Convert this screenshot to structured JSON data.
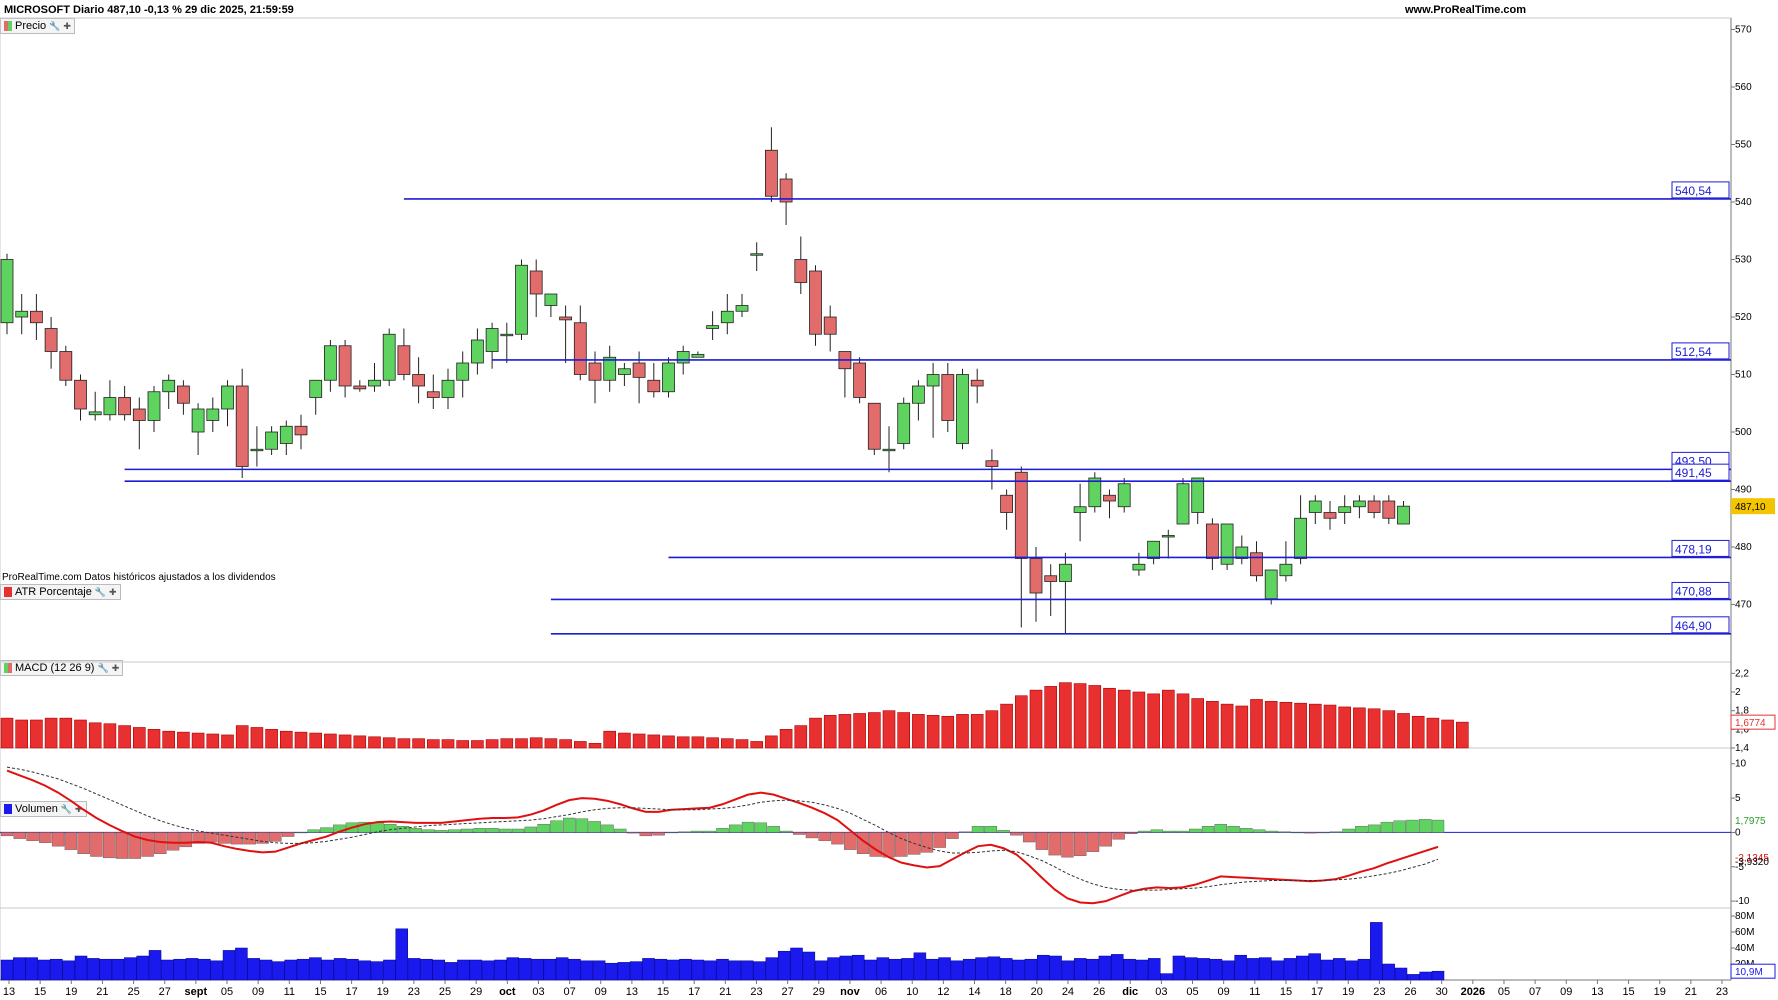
{
  "header": {
    "title": "MICROSOFT Diario 487,10 -0,13 % 29 dic 2025, 21:59:59",
    "site": "www.ProRealTime.com",
    "note": "ProRealTime.com Datos históricos ajustados a los dividendos"
  },
  "panels": {
    "price": {
      "label": "Precio"
    },
    "atr": {
      "label": "ATR Porcentaje",
      "current_label": "1,6774"
    },
    "macd": {
      "label": "MACD (12 26 9)",
      "hist_label": "1,7975",
      "macd_label": "-2,1345",
      "signal_label": "-3,9320"
    },
    "volume": {
      "label": "Volumen",
      "current_label": "10,9M"
    }
  },
  "colors": {
    "up": "#5fd35f",
    "down": "#e26b6b",
    "level": "#1c1cd6",
    "atr": "#e83030",
    "macd_line": "#e01010",
    "volume": "#1a1aee",
    "price_tag": "#f4c400"
  },
  "chart_data": [
    {
      "type": "candlestick",
      "series_name": "Precio",
      "ylim": [
        460,
        572
      ],
      "y_ticks": [
        470,
        480,
        490,
        500,
        510,
        520,
        530,
        540,
        550,
        560,
        570
      ],
      "last_price_label": "487,10",
      "levels": [
        {
          "label": "540,54",
          "value": 540.54,
          "from_index": 27
        },
        {
          "label": "512,54",
          "value": 512.54,
          "from_index": 33
        },
        {
          "label": "493,50",
          "value": 493.5,
          "from_index": 8
        },
        {
          "label": "491,45",
          "value": 491.45,
          "from_index": 8
        },
        {
          "label": "478,19",
          "value": 478.19,
          "from_index": 45
        },
        {
          "label": "470,88",
          "value": 470.88,
          "from_index": 37
        },
        {
          "label": "464,90",
          "value": 464.9,
          "from_index": 37
        }
      ],
      "candles": [
        {
          "o": 519,
          "h": 531,
          "l": 517,
          "c": 530
        },
        {
          "o": 520,
          "h": 524,
          "l": 517,
          "c": 521
        },
        {
          "o": 521,
          "h": 524,
          "l": 516,
          "c": 519
        },
        {
          "o": 518,
          "h": 520,
          "l": 511,
          "c": 514
        },
        {
          "o": 514,
          "h": 515,
          "l": 508,
          "c": 509
        },
        {
          "o": 509,
          "h": 510,
          "l": 502,
          "c": 504
        },
        {
          "o": 503,
          "h": 507,
          "l": 502,
          "c": 503.5
        },
        {
          "o": 503,
          "h": 509,
          "l": 502,
          "c": 506
        },
        {
          "o": 506,
          "h": 508,
          "l": 502,
          "c": 503
        },
        {
          "o": 504,
          "h": 506,
          "l": 497,
          "c": 502
        },
        {
          "o": 502,
          "h": 508,
          "l": 500,
          "c": 507
        },
        {
          "o": 507,
          "h": 510,
          "l": 504,
          "c": 509
        },
        {
          "o": 508,
          "h": 509,
          "l": 503,
          "c": 505
        },
        {
          "o": 500,
          "h": 505,
          "l": 496,
          "c": 504
        },
        {
          "o": 502,
          "h": 506,
          "l": 500,
          "c": 504
        },
        {
          "o": 504,
          "h": 509,
          "l": 501,
          "c": 508
        },
        {
          "o": 508,
          "h": 511,
          "l": 492,
          "c": 494
        },
        {
          "o": 497,
          "h": 501,
          "l": 494,
          "c": 497
        },
        {
          "o": 497,
          "h": 501,
          "l": 496,
          "c": 500
        },
        {
          "o": 498,
          "h": 502,
          "l": 496,
          "c": 501
        },
        {
          "o": 501,
          "h": 503,
          "l": 497,
          "c": 499.5
        },
        {
          "o": 506,
          "h": 509,
          "l": 503,
          "c": 509
        },
        {
          "o": 509,
          "h": 516,
          "l": 507,
          "c": 515
        },
        {
          "o": 515,
          "h": 516,
          "l": 506,
          "c": 508
        },
        {
          "o": 508,
          "h": 509,
          "l": 507,
          "c": 507.5
        },
        {
          "o": 508,
          "h": 512,
          "l": 507,
          "c": 509
        },
        {
          "o": 509,
          "h": 518,
          "l": 508,
          "c": 517
        },
        {
          "o": 515,
          "h": 518,
          "l": 509,
          "c": 510
        },
        {
          "o": 510,
          "h": 513,
          "l": 505,
          "c": 508
        },
        {
          "o": 507,
          "h": 510,
          "l": 504,
          "c": 506
        },
        {
          "o": 506,
          "h": 511,
          "l": 504,
          "c": 509
        },
        {
          "o": 509,
          "h": 514,
          "l": 506,
          "c": 512
        },
        {
          "o": 512,
          "h": 518,
          "l": 510,
          "c": 516
        },
        {
          "o": 514,
          "h": 519,
          "l": 511,
          "c": 518
        },
        {
          "o": 517,
          "h": 519,
          "l": 512,
          "c": 517
        },
        {
          "o": 517,
          "h": 530,
          "l": 516,
          "c": 529
        },
        {
          "o": 528,
          "h": 530,
          "l": 520,
          "c": 524
        },
        {
          "o": 522,
          "h": 524,
          "l": 520,
          "c": 524
        },
        {
          "o": 520,
          "h": 522,
          "l": 512,
          "c": 519.5
        },
        {
          "o": 519,
          "h": 522,
          "l": 509,
          "c": 510
        },
        {
          "o": 512,
          "h": 514,
          "l": 505,
          "c": 509
        },
        {
          "o": 509,
          "h": 515,
          "l": 507,
          "c": 513
        },
        {
          "o": 510,
          "h": 512,
          "l": 508,
          "c": 511
        },
        {
          "o": 512,
          "h": 514,
          "l": 505,
          "c": 509.5
        },
        {
          "o": 509,
          "h": 512,
          "l": 506,
          "c": 507
        },
        {
          "o": 507,
          "h": 513,
          "l": 506,
          "c": 512
        },
        {
          "o": 512,
          "h": 515,
          "l": 510,
          "c": 514
        },
        {
          "o": 513,
          "h": 514,
          "l": 513,
          "c": 513.5
        },
        {
          "o": 518,
          "h": 521,
          "l": 516,
          "c": 518.5
        },
        {
          "o": 519,
          "h": 524,
          "l": 517,
          "c": 521
        },
        {
          "o": 521,
          "h": 524,
          "l": 520,
          "c": 522
        },
        {
          "o": 531,
          "h": 533,
          "l": 528,
          "c": 531
        },
        {
          "o": 549,
          "h": 553,
          "l": 540,
          "c": 541
        },
        {
          "o": 544,
          "h": 545,
          "l": 536,
          "c": 540
        },
        {
          "o": 530,
          "h": 534,
          "l": 524,
          "c": 526
        },
        {
          "o": 528,
          "h": 529,
          "l": 515,
          "c": 517
        },
        {
          "o": 520,
          "h": 522,
          "l": 514,
          "c": 517
        },
        {
          "o": 514,
          "h": 514,
          "l": 506,
          "c": 511
        },
        {
          "o": 512,
          "h": 513,
          "l": 505,
          "c": 506
        },
        {
          "o": 505,
          "h": 505,
          "l": 496,
          "c": 497
        },
        {
          "o": 497,
          "h": 501,
          "l": 493,
          "c": 497
        },
        {
          "o": 498,
          "h": 506,
          "l": 497,
          "c": 505
        },
        {
          "o": 505,
          "h": 509,
          "l": 502,
          "c": 508
        },
        {
          "o": 508,
          "h": 512,
          "l": 499,
          "c": 510
        },
        {
          "o": 510,
          "h": 512,
          "l": 500,
          "c": 502
        },
        {
          "o": 498,
          "h": 511,
          "l": 497,
          "c": 510
        },
        {
          "o": 509,
          "h": 511,
          "l": 505,
          "c": 508
        },
        {
          "o": 495,
          "h": 497,
          "l": 490,
          "c": 494
        },
        {
          "o": 489,
          "h": 490,
          "l": 483,
          "c": 486
        },
        {
          "o": 493,
          "h": 494,
          "l": 466,
          "c": 478
        },
        {
          "o": 478,
          "h": 480,
          "l": 467,
          "c": 472
        },
        {
          "o": 475,
          "h": 477,
          "l": 468,
          "c": 474
        },
        {
          "o": 474,
          "h": 479,
          "l": 465,
          "c": 477
        },
        {
          "o": 486,
          "h": 491,
          "l": 481,
          "c": 487
        },
        {
          "o": 487,
          "h": 493,
          "l": 486,
          "c": 492
        },
        {
          "o": 489,
          "h": 490,
          "l": 485,
          "c": 488
        },
        {
          "o": 487,
          "h": 492,
          "l": 486,
          "c": 491
        },
        {
          "o": 476,
          "h": 479,
          "l": 475,
          "c": 477
        },
        {
          "o": 478,
          "h": 481,
          "l": 477,
          "c": 481
        },
        {
          "o": 482,
          "h": 483,
          "l": 478,
          "c": 482
        },
        {
          "o": 484,
          "h": 492,
          "l": 484,
          "c": 491
        },
        {
          "o": 486,
          "h": 492,
          "l": 484,
          "c": 492
        },
        {
          "o": 484,
          "h": 485,
          "l": 476,
          "c": 478
        },
        {
          "o": 477,
          "h": 484,
          "l": 476,
          "c": 484
        },
        {
          "o": 478,
          "h": 482,
          "l": 477,
          "c": 480
        },
        {
          "o": 479,
          "h": 481,
          "l": 474,
          "c": 475
        },
        {
          "o": 471,
          "h": 476,
          "l": 470,
          "c": 476
        },
        {
          "o": 475,
          "h": 481,
          "l": 474,
          "c": 477
        },
        {
          "o": 478,
          "h": 489,
          "l": 477,
          "c": 485
        },
        {
          "o": 486,
          "h": 489,
          "l": 484,
          "c": 488
        },
        {
          "o": 486,
          "h": 488,
          "l": 483,
          "c": 485
        },
        {
          "o": 486,
          "h": 489,
          "l": 484,
          "c": 487
        },
        {
          "o": 487,
          "h": 489,
          "l": 485,
          "c": 488
        },
        {
          "o": 488,
          "h": 489,
          "l": 485,
          "c": 486
        },
        {
          "o": 488,
          "h": 489,
          "l": 484,
          "c": 485
        },
        {
          "o": 484,
          "h": 488,
          "l": 484,
          "c": 487.1
        }
      ]
    },
    {
      "type": "bar",
      "series_name": "ATR Porcentaje",
      "ylim": [
        1.4,
        2.3
      ],
      "y_ticks": [
        1.4,
        1.6,
        1.8,
        2,
        2.2
      ],
      "values": [
        1.72,
        1.7,
        1.7,
        1.72,
        1.72,
        1.7,
        1.67,
        1.66,
        1.64,
        1.62,
        1.6,
        1.58,
        1.57,
        1.56,
        1.55,
        1.54,
        1.64,
        1.62,
        1.6,
        1.58,
        1.57,
        1.56,
        1.55,
        1.54,
        1.53,
        1.52,
        1.51,
        1.5,
        1.5,
        1.49,
        1.49,
        1.48,
        1.48,
        1.49,
        1.5,
        1.5,
        1.51,
        1.5,
        1.49,
        1.47,
        1.45,
        1.58,
        1.56,
        1.55,
        1.54,
        1.53,
        1.52,
        1.52,
        1.51,
        1.5,
        1.49,
        1.47,
        1.53,
        1.6,
        1.64,
        1.72,
        1.75,
        1.76,
        1.77,
        1.78,
        1.8,
        1.78,
        1.76,
        1.75,
        1.74,
        1.76,
        1.76,
        1.8,
        1.87,
        1.96,
        2.02,
        2.06,
        2.1,
        2.09,
        2.07,
        2.04,
        2.02,
        2.0,
        1.98,
        2.02,
        1.98,
        1.93,
        1.9,
        1.87,
        1.85,
        1.92,
        1.9,
        1.89,
        1.88,
        1.87,
        1.86,
        1.84,
        1.83,
        1.82,
        1.8,
        1.77,
        1.74,
        1.72,
        1.7,
        1.677
      ],
      "value_label": "1,6774"
    },
    {
      "type": "macd",
      "series_name": "MACD (12 26 9)",
      "ylim": [
        -11,
        12
      ],
      "y_ticks": [
        -10,
        -5,
        0,
        5,
        10
      ],
      "macd": [
        9.0,
        8.3,
        7.6,
        6.8,
        5.8,
        4.6,
        3.3,
        2.1,
        1.1,
        0.2,
        -0.6,
        -1.1,
        -1.4,
        -1.5,
        -1.5,
        -1.4,
        -1.5,
        -2.0,
        -2.4,
        -2.7,
        -2.9,
        -2.8,
        -2.2,
        -1.6,
        -1.1,
        -0.6,
        0.1,
        0.7,
        1.2,
        1.5,
        1.6,
        1.5,
        1.4,
        1.4,
        1.4,
        1.6,
        1.8,
        2.0,
        2.1,
        2.1,
        2.2,
        2.6,
        3.2,
        4.0,
        4.7,
        5.0,
        4.9,
        4.6,
        4.1,
        3.5,
        3.0,
        3.0,
        3.3,
        3.4,
        3.5,
        3.6,
        4.1,
        4.8,
        5.5,
        5.8,
        5.5,
        4.9,
        4.3,
        3.6,
        2.8,
        1.8,
        0.3,
        -1.2,
        -2.5,
        -3.6,
        -4.4,
        -4.8,
        -5.1,
        -4.9,
        -3.9,
        -2.9,
        -2.0,
        -1.8,
        -2.3,
        -3.2,
        -4.8,
        -6.6,
        -8.3,
        -9.6,
        -10.2,
        -10.3,
        -10.0,
        -9.3,
        -8.6,
        -8.2,
        -8.0,
        -8.1,
        -8.0,
        -7.6,
        -7.0,
        -6.4,
        -6.5,
        -6.6,
        -6.7,
        -6.8,
        -6.9,
        -7.0,
        -7.1,
        -7.0,
        -6.8,
        -6.3,
        -5.7,
        -5.2,
        -4.5,
        -3.9,
        -3.3,
        -2.7,
        -2.1
      ],
      "signal": [
        9.5,
        9.2,
        8.8,
        8.3,
        7.8,
        7.1,
        6.4,
        5.6,
        4.8,
        4.0,
        3.2,
        2.4,
        1.7,
        1.1,
        0.6,
        0.2,
        -0.1,
        -0.4,
        -0.7,
        -1.0,
        -1.3,
        -1.5,
        -1.6,
        -1.6,
        -1.5,
        -1.3,
        -1.0,
        -0.7,
        -0.3,
        0.1,
        0.4,
        0.6,
        0.8,
        1.0,
        1.1,
        1.2,
        1.3,
        1.4,
        1.5,
        1.6,
        1.7,
        1.8,
        2.0,
        2.3,
        2.6,
        3.0,
        3.3,
        3.5,
        3.6,
        3.6,
        3.5,
        3.4,
        3.3,
        3.3,
        3.3,
        3.4,
        3.5,
        3.7,
        4.0,
        4.4,
        4.6,
        4.7,
        4.6,
        4.4,
        4.0,
        3.5,
        2.8,
        1.9,
        1.0,
        0.0,
        -0.9,
        -1.6,
        -2.2,
        -2.7,
        -3.0,
        -3.0,
        -2.9,
        -2.7,
        -2.6,
        -2.8,
        -3.4,
        -4.1,
        -5.0,
        -6.0,
        -6.8,
        -7.5,
        -8.0,
        -8.3,
        -8.4,
        -8.4,
        -8.4,
        -8.3,
        -8.2,
        -8.1,
        -7.9,
        -7.6,
        -7.4,
        -7.2,
        -7.1,
        -7.0,
        -7.0,
        -7.0,
        -7.0,
        -7.0,
        -6.9,
        -6.8,
        -6.6,
        -6.3,
        -6.0,
        -5.6,
        -5.1,
        -4.6,
        -3.9
      ],
      "hist_label": "1,7975",
      "macd_label": "-2,1345",
      "signal_label": "-3,9320"
    },
    {
      "type": "bar",
      "series_name": "Volumen",
      "ylim": [
        0,
        85
      ],
      "y_ticks": [
        20,
        40,
        60,
        80
      ],
      "y_tick_labels": [
        "20M",
        "40M",
        "60M",
        "80M"
      ],
      "values": [
        25,
        28,
        28,
        25,
        26,
        24,
        30,
        27,
        26,
        26,
        28,
        30,
        37,
        25,
        26,
        27,
        26,
        24,
        37,
        40,
        27,
        25,
        23,
        25,
        26,
        28,
        25,
        27,
        26,
        24,
        23,
        25,
        64,
        27,
        26,
        25,
        22,
        25,
        25,
        24,
        25,
        28,
        27,
        26,
        26,
        28,
        26,
        24,
        24,
        21,
        22,
        23,
        27,
        26,
        25,
        26,
        25,
        24,
        26,
        24,
        24,
        23,
        28,
        36,
        40,
        35,
        24,
        28,
        30,
        31,
        25,
        28,
        26,
        27,
        34,
        26,
        28,
        24,
        26,
        28,
        29,
        27,
        25,
        26,
        31,
        30,
        24,
        27,
        26,
        30,
        32,
        26,
        25,
        27,
        8,
        30,
        28,
        27,
        26,
        24,
        31,
        27,
        28,
        24,
        27,
        30,
        33,
        25,
        27,
        24,
        26,
        72,
        20,
        15,
        7,
        10,
        11
      ],
      "value_label": "10,9M"
    }
  ],
  "x_axis": {
    "tick_labels": [
      "13",
      "15",
      "19",
      "21",
      "25",
      "27",
      "sept",
      "05",
      "09",
      "11",
      "15",
      "17",
      "19",
      "23",
      "25",
      "29",
      "oct",
      "03",
      "07",
      "09",
      "13",
      "15",
      "17",
      "21",
      "23",
      "27",
      "29",
      "nov",
      "06",
      "10",
      "12",
      "14",
      "18",
      "20",
      "24",
      "26",
      "dic",
      "03",
      "05",
      "09",
      "11",
      "15",
      "17",
      "19",
      "23",
      "26",
      "30",
      "2026",
      "05",
      "07",
      "09",
      "13",
      "15",
      "19",
      "21",
      "23"
    ],
    "bold_labels": [
      "sept",
      "oct",
      "nov",
      "dic",
      "2026"
    ]
  }
}
